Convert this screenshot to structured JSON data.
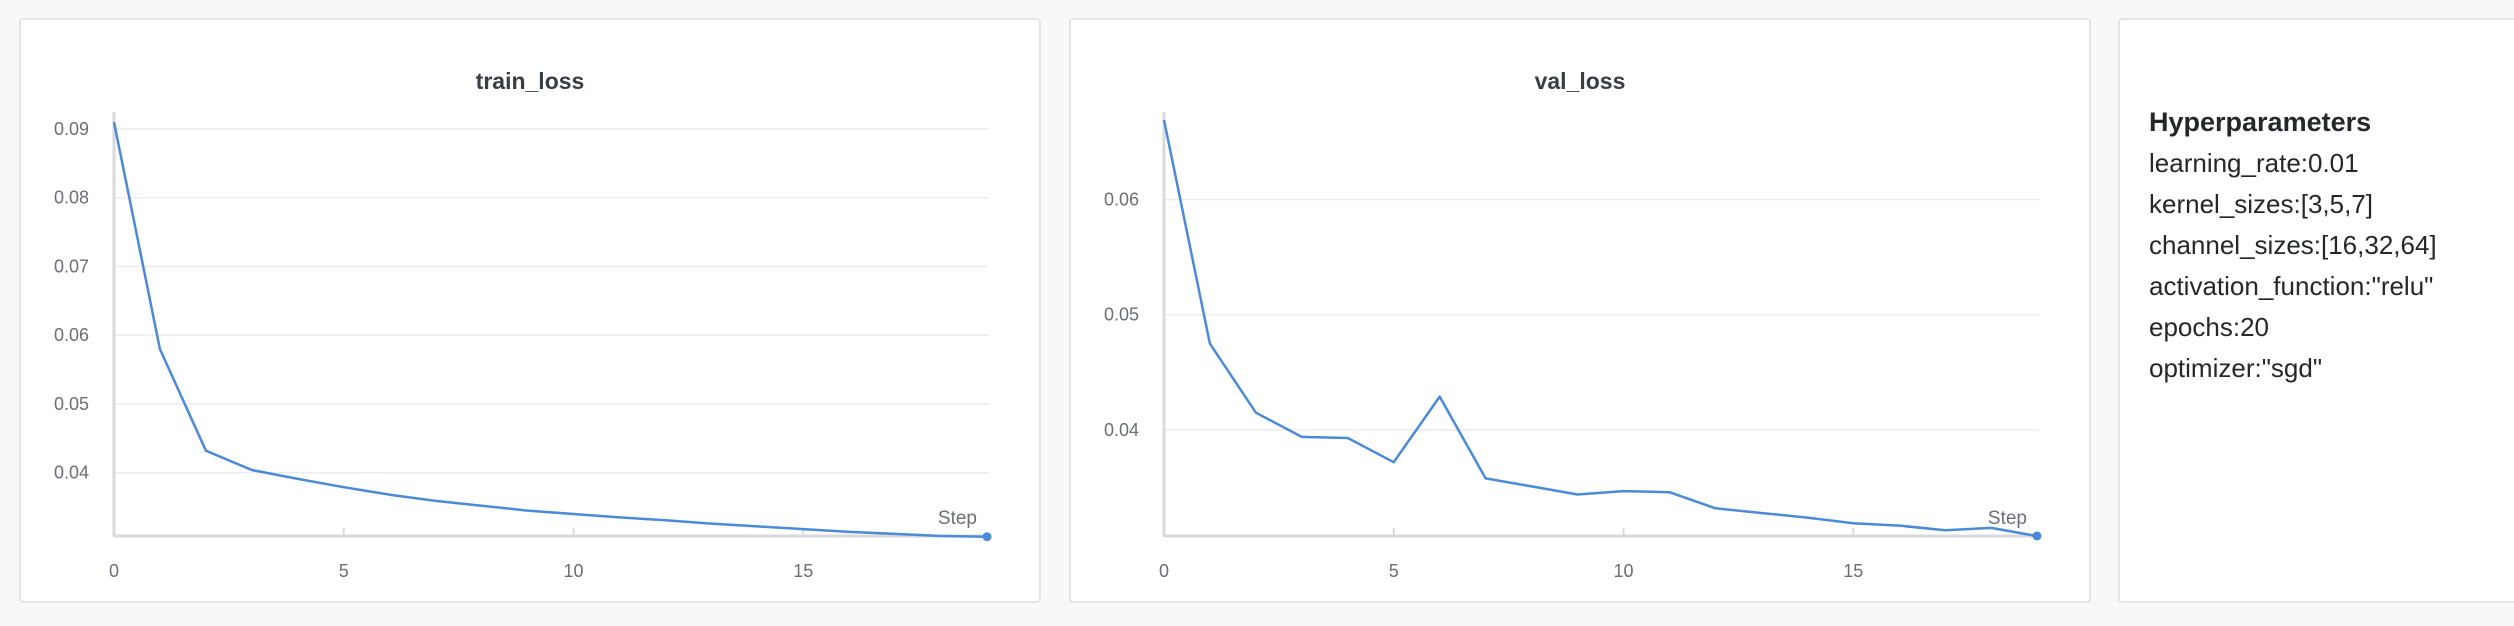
{
  "panels": {
    "train": {
      "title": "train_loss"
    },
    "val": {
      "title": "val_loss"
    }
  },
  "hyperparameters": {
    "title": "Hyperparameters",
    "items": [
      "learning_rate:0.01",
      "kernel_sizes:[3,5,7]",
      "channel_sizes:[16,32,64]",
      "activation_function:\"relu\"",
      "epochs:20",
      "optimizer:\"sgd\""
    ]
  },
  "colors": {
    "line": "#4a8ad8",
    "grid": "#ececee",
    "axis": "#d8d9dc",
    "text": "#6c6e76"
  },
  "chart_data": [
    {
      "type": "line",
      "title": "train_loss",
      "xlabel": "Step",
      "ylabel": "",
      "x": [
        0,
        1,
        2,
        3,
        4,
        5,
        6,
        7,
        8,
        9,
        10,
        11,
        12,
        13,
        14,
        15,
        16,
        17,
        18,
        19
      ],
      "series": [
        {
          "values": [
            0.091,
            0.058,
            0.0432,
            0.0404,
            0.0391,
            0.0379,
            0.0368,
            0.0359,
            0.0352,
            0.0345,
            0.034,
            0.0335,
            0.0331,
            0.0326,
            0.0322,
            0.0318,
            0.0314,
            0.0311,
            0.0308,
            0.0307
          ]
        }
      ],
      "xlim": [
        0,
        19
      ],
      "ylim": [
        0.0308,
        0.0913
      ],
      "xticks": [
        0,
        5,
        10,
        15
      ],
      "yticks": [
        0.04,
        0.05,
        0.06,
        0.07,
        0.08,
        0.09
      ],
      "ytick_labels": [
        "0.04",
        "0.05",
        "0.06",
        "0.07",
        "0.08",
        "0.09"
      ],
      "grid": true,
      "legend": "none"
    },
    {
      "type": "line",
      "title": "val_loss",
      "xlabel": "Step",
      "ylabel": "",
      "x": [
        0,
        1,
        2,
        3,
        4,
        5,
        6,
        7,
        8,
        9,
        10,
        11,
        12,
        13,
        14,
        15,
        16,
        17,
        18,
        19
      ],
      "series": [
        {
          "values": [
            0.0669,
            0.0475,
            0.0415,
            0.0394,
            0.0393,
            0.0372,
            0.0429,
            0.0358,
            0.0351,
            0.0344,
            0.0347,
            0.0346,
            0.0332,
            0.0328,
            0.0324,
            0.0319,
            0.0317,
            0.0313,
            0.0315,
            0.0308
          ]
        }
      ],
      "xlim": [
        0,
        19
      ],
      "ylim": [
        0.0308,
        0.0669
      ],
      "xticks": [
        0,
        5,
        10,
        15
      ],
      "yticks": [
        0.04,
        0.05,
        0.06
      ],
      "ytick_labels": [
        "0.04",
        "0.05",
        "0.06"
      ],
      "grid": true,
      "legend": "none"
    }
  ]
}
